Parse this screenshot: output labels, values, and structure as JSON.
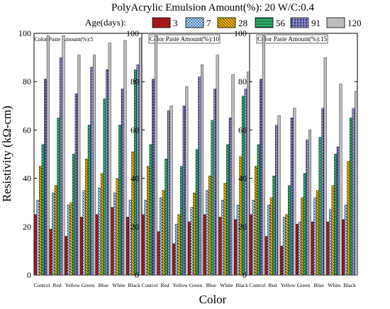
{
  "chart_data": {
    "type": "bar",
    "title": "PolyAcrylic Emulsion Amount(%):  20   W/C:0.4",
    "legend_title": "Age(days):",
    "xlabel": "Color",
    "ylabel": "Resistivity (kΩ-cm)",
    "ylim": [
      0,
      100
    ],
    "yticks": [
      0,
      20,
      40,
      60,
      80,
      100
    ],
    "legend_position": "top",
    "categories": [
      "Control",
      "Red",
      "Yellow",
      "Green",
      "Blue",
      "White",
      "Black"
    ],
    "series": [
      {
        "name": "3",
        "color": "#cc1f1f",
        "pattern": "diag-fwd"
      },
      {
        "name": "7",
        "color": "#2b6cb0",
        "pattern": "crosshatch"
      },
      {
        "name": "28",
        "color": "#f2b705",
        "pattern": "diag-back"
      },
      {
        "name": "56",
        "color": "#2fb36b",
        "pattern": "horizontal"
      },
      {
        "name": "91",
        "color": "#3b3b8f",
        "pattern": "grid"
      },
      {
        "name": "120",
        "color": "#bdbdbd",
        "pattern": "none"
      }
    ],
    "panels": [
      {
        "label": "Color Paste Amount(%):5",
        "data": [
          [
            25,
            31,
            45,
            54,
            81,
            99
          ],
          [
            19,
            34,
            37,
            65,
            90,
            99
          ],
          [
            16,
            29,
            30,
            50,
            75,
            91
          ],
          [
            24,
            35,
            48,
            62,
            86,
            91
          ],
          [
            25,
            36,
            42,
            73,
            85,
            96
          ],
          [
            28,
            34,
            40,
            62,
            77,
            97
          ],
          [
            24,
            31,
            51,
            85,
            87,
            98
          ]
        ]
      },
      {
        "label": "Color Paste Amount(%):10",
        "data": [
          [
            25,
            31,
            45,
            54,
            81,
            99
          ],
          [
            18,
            32,
            35,
            48,
            68,
            70
          ],
          [
            13,
            21,
            25,
            45,
            70,
            78
          ],
          [
            22,
            28,
            34,
            52,
            82,
            87
          ],
          [
            25,
            35,
            41,
            64,
            77,
            91
          ],
          [
            24,
            31,
            38,
            54,
            65,
            83
          ],
          [
            23,
            29,
            49,
            74,
            77,
            84
          ]
        ]
      },
      {
        "label": "Color Paste Amount(%):15",
        "data": [
          [
            25,
            31,
            45,
            54,
            81,
            99
          ],
          [
            16,
            29,
            32,
            41,
            62,
            66
          ],
          [
            12,
            24,
            25,
            37,
            65,
            69
          ],
          [
            21,
            22,
            32,
            42,
            56,
            60
          ],
          [
            22,
            32,
            35,
            57,
            69,
            90
          ],
          [
            22,
            27,
            37,
            50,
            53,
            79
          ],
          [
            23,
            29,
            47,
            65,
            69,
            76
          ]
        ]
      }
    ]
  }
}
